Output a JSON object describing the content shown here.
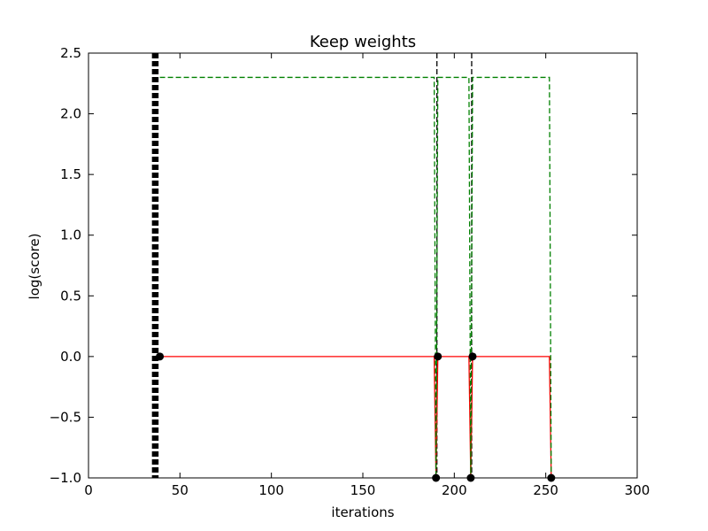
{
  "chart_data": {
    "type": "line",
    "title": "Keep weights",
    "xlabel": "iterations",
    "ylabel": "log(score)",
    "xlim": [
      0,
      300
    ],
    "ylim": [
      -1.0,
      2.5
    ],
    "xticks": [
      0,
      50,
      100,
      150,
      200,
      250,
      300
    ],
    "yticks": [
      -1.0,
      -0.5,
      0.0,
      0.5,
      1.0,
      1.5,
      2.0,
      2.5
    ],
    "xtick_labels": [
      "0",
      "50",
      "100",
      "150",
      "200",
      "250",
      "300"
    ],
    "ytick_labels": [
      "−1.0",
      "−0.5",
      "0.0",
      "0.5",
      "1.0",
      "1.5",
      "2.0",
      "2.5"
    ],
    "grid": false,
    "colors": {
      "red": "#ff0000",
      "green": "#008000",
      "black": "#000000"
    },
    "series": [
      {
        "style": "solid",
        "color": "#ff0000",
        "x": [
          39,
          189,
          190,
          191,
          208,
          209,
          210,
          252,
          253
        ],
        "y": [
          0.0,
          0.0,
          -1.0,
          0.0,
          0.0,
          -1.0,
          0.0,
          0.0,
          -1.0
        ]
      },
      {
        "style": "dashed",
        "color": "#008000",
        "x": [
          39,
          189,
          190,
          191,
          208,
          209,
          210,
          252,
          253
        ],
        "y": [
          2.3,
          2.3,
          -1.0,
          2.3,
          2.3,
          -1.0,
          2.3,
          2.3,
          -1.0
        ]
      }
    ],
    "vlines": {
      "style": "dashed",
      "color": "#000000",
      "x": [
        35.0,
        35.5,
        36.0,
        36.5,
        37.0,
        37.5,
        38.0,
        190.5,
        209.5
      ]
    },
    "markers": {
      "color": "#000000",
      "points": [
        {
          "x": 39,
          "y": 0.0
        },
        {
          "x": 190,
          "y": -1.0
        },
        {
          "x": 191,
          "y": 0.0
        },
        {
          "x": 209,
          "y": -1.0
        },
        {
          "x": 210,
          "y": 0.0
        },
        {
          "x": 253,
          "y": -1.0
        }
      ]
    }
  }
}
